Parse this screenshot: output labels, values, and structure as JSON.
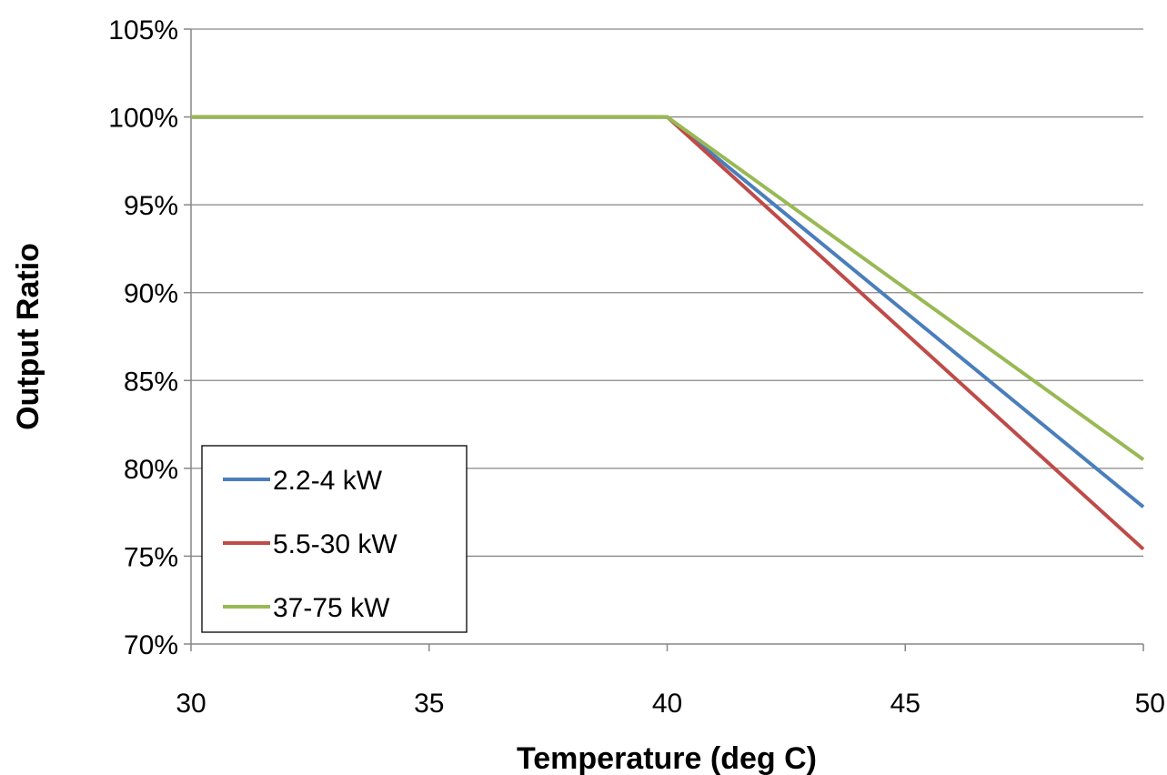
{
  "chart_data": {
    "type": "line",
    "title": "",
    "xlabel": "Temperature (deg C)",
    "ylabel": "Output Ratio",
    "xlim": [
      30,
      50
    ],
    "ylim": [
      0.7,
      1.05
    ],
    "xticks": [
      30,
      35,
      40,
      45,
      50
    ],
    "xtick_labels": [
      "30",
      "35",
      "40",
      "45",
      "50"
    ],
    "yticks": [
      0.7,
      0.75,
      0.8,
      0.85,
      0.9,
      0.95,
      1.0,
      1.05
    ],
    "ytick_labels": [
      "70%",
      "75%",
      "80%",
      "85%",
      "90%",
      "95%",
      "100%",
      "105%"
    ],
    "grid": "horizontal",
    "legend_position": "bottom-left",
    "series": [
      {
        "name": "2.2-4 kW",
        "color": "#4A7EBB",
        "x": [
          30,
          40,
          50
        ],
        "y": [
          1.0,
          1.0,
          0.778
        ]
      },
      {
        "name": "5.5-30 kW",
        "color": "#BE4B48",
        "x": [
          30,
          40,
          50
        ],
        "y": [
          1.0,
          1.0,
          0.754
        ]
      },
      {
        "name": "37-75 kW",
        "color": "#98B954",
        "x": [
          30,
          40,
          50
        ],
        "y": [
          1.0,
          1.0,
          0.805
        ]
      }
    ]
  }
}
